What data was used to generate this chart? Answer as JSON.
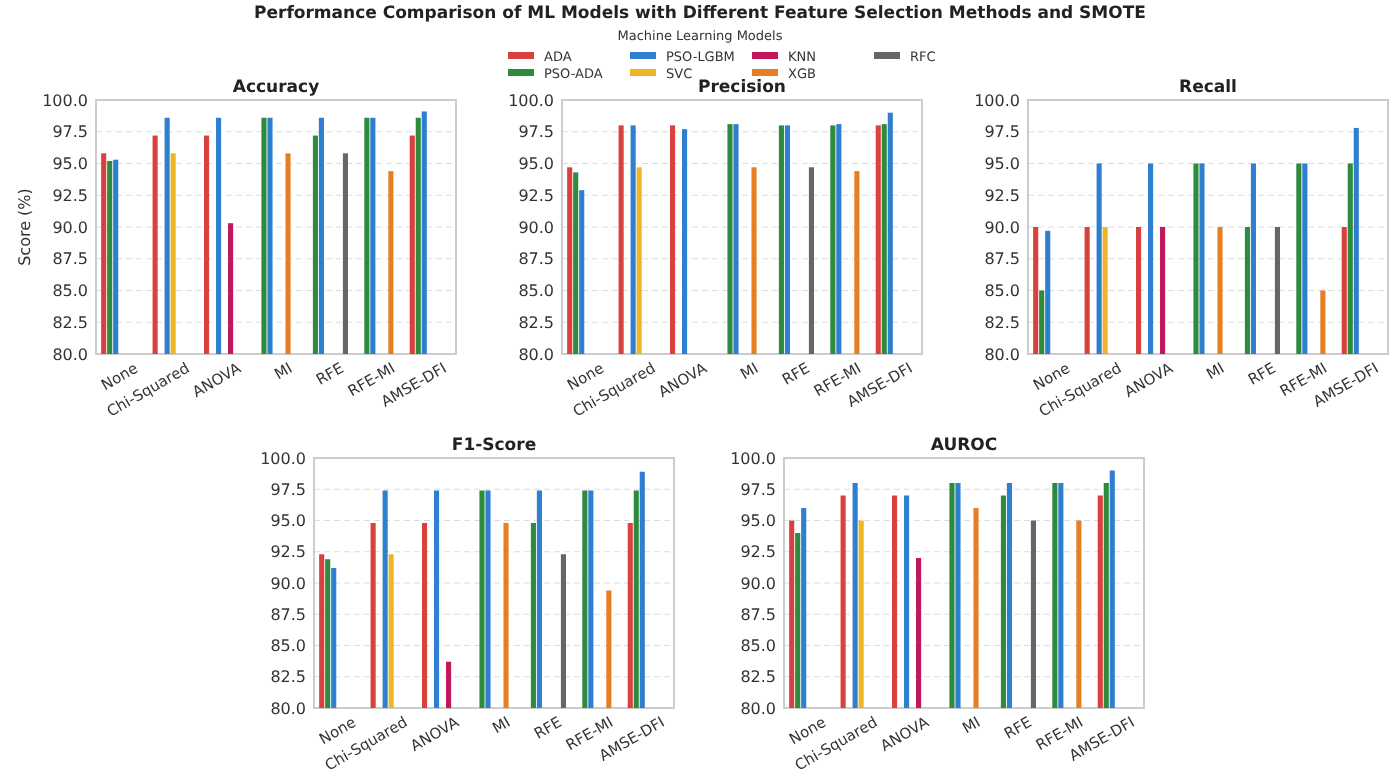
{
  "chart_data": [
    {
      "type": "bar",
      "title": "Accuracy",
      "ylabel": "Score (%)",
      "legend": "top",
      "legend_title": "Machine Learning Models",
      "annotations": [
        "Performance Comparison of ML Models with Different Feature Selection Methods and SMOTE"
      ],
      "grid": "y",
      "categories": [
        "None",
        "Chi-Squared",
        "ANOVA",
        "MI",
        "RFE",
        "RFE-MI",
        "AMSE-DFI"
      ],
      "ylim": [
        80,
        100
      ],
      "yticks": [
        {
          "value": 80,
          "label": "80.0"
        },
        {
          "value": 82.5,
          "label": "82.5"
        },
        {
          "value": 85,
          "label": "85.0"
        },
        {
          "value": 87.5,
          "label": "87.5"
        },
        {
          "value": 90,
          "label": "90.0"
        },
        {
          "value": 92.5,
          "label": "92.5"
        },
        {
          "value": 95,
          "label": "95.0"
        },
        {
          "value": 97.5,
          "label": "97.5"
        },
        {
          "value": 100,
          "label": "100.0"
        }
      ],
      "series": [
        {
          "name": "ADA",
          "color": "#d9413f",
          "values": [
            95.8,
            97.2,
            97.2,
            null,
            null,
            null,
            97.2
          ]
        },
        {
          "name": "PSO-ADA",
          "color": "#2e8b3e",
          "values": [
            95.2,
            null,
            null,
            98.6,
            97.2,
            98.6,
            98.6
          ]
        },
        {
          "name": "PSO-LGBM",
          "color": "#2f7fd0",
          "values": [
            95.3,
            98.6,
            98.6,
            98.6,
            98.6,
            98.6,
            99.1
          ]
        },
        {
          "name": "SVC",
          "color": "#f0b429",
          "values": [
            null,
            95.8,
            null,
            null,
            null,
            null,
            null
          ]
        },
        {
          "name": "KNN",
          "color": "#c2185b",
          "values": [
            null,
            null,
            90.3,
            null,
            null,
            null,
            null
          ]
        },
        {
          "name": "XGB",
          "color": "#e67e22",
          "values": [
            null,
            null,
            null,
            95.8,
            null,
            94.4,
            null
          ]
        },
        {
          "name": "RFC",
          "color": "#666666",
          "values": [
            null,
            null,
            null,
            null,
            95.8,
            null,
            null
          ]
        }
      ]
    },
    {
      "type": "bar",
      "title": "Precision",
      "grid": "y",
      "categories": [
        "None",
        "Chi-Squared",
        "ANOVA",
        "MI",
        "RFE",
        "RFE-MI",
        "AMSE-DFI"
      ],
      "ylim": [
        80,
        100
      ],
      "yticks": [
        {
          "value": 80,
          "label": "80.0"
        },
        {
          "value": 82.5,
          "label": "82.5"
        },
        {
          "value": 85,
          "label": "85.0"
        },
        {
          "value": 87.5,
          "label": "87.5"
        },
        {
          "value": 90,
          "label": "90.0"
        },
        {
          "value": 92.5,
          "label": "92.5"
        },
        {
          "value": 95,
          "label": "95.0"
        },
        {
          "value": 97.5,
          "label": "97.5"
        },
        {
          "value": 100,
          "label": "100.0"
        }
      ],
      "series": [
        {
          "color": "#d9413f",
          "values": [
            94.7,
            98.0,
            98.0,
            null,
            null,
            null,
            98.0
          ]
        },
        {
          "color": "#2e8b3e",
          "values": [
            94.3,
            null,
            null,
            98.1,
            98.0,
            98.0,
            98.1
          ]
        },
        {
          "color": "#2f7fd0",
          "values": [
            92.9,
            98.0,
            97.7,
            98.1,
            98.0,
            98.1,
            99.0
          ]
        },
        {
          "color": "#f0b429",
          "values": [
            null,
            94.7,
            null,
            null,
            null,
            null,
            null
          ]
        },
        {
          "values": [
            null,
            null,
            null,
            null,
            null,
            null,
            null
          ]
        },
        {
          "color": "#e67e22",
          "values": [
            null,
            null,
            null,
            94.7,
            null,
            94.4,
            null
          ]
        },
        {
          "color": "#666666",
          "values": [
            null,
            null,
            null,
            null,
            94.7,
            null,
            null
          ]
        }
      ]
    },
    {
      "type": "bar",
      "title": "Recall",
      "grid": "y",
      "categories": [
        "None",
        "Chi-Squared",
        "ANOVA",
        "MI",
        "RFE",
        "RFE-MI",
        "AMSE-DFI"
      ],
      "ylim": [
        80,
        100
      ],
      "yticks": [
        {
          "value": 80,
          "label": "80.0"
        },
        {
          "value": 82.5,
          "label": "82.5"
        },
        {
          "value": 85,
          "label": "85.0"
        },
        {
          "value": 87.5,
          "label": "87.5"
        },
        {
          "value": 90,
          "label": "90.0"
        },
        {
          "value": 92.5,
          "label": "92.5"
        },
        {
          "value": 95,
          "label": "95.0"
        },
        {
          "value": 97.5,
          "label": "97.5"
        },
        {
          "value": 100,
          "label": "100.0"
        }
      ],
      "series": [
        {
          "color": "#d9413f",
          "values": [
            90,
            90,
            90,
            null,
            null,
            null,
            90
          ]
        },
        {
          "color": "#2e8b3e",
          "values": [
            85,
            null,
            null,
            95,
            90,
            95,
            95
          ]
        },
        {
          "color": "#2f7fd0",
          "values": [
            89.7,
            95,
            95,
            95,
            95,
            95,
            97.8
          ]
        },
        {
          "color": "#f0b429",
          "values": [
            null,
            90,
            null,
            null,
            null,
            null,
            null
          ]
        },
        {
          "color": "#c2185b",
          "values": [
            null,
            null,
            90,
            null,
            null,
            null,
            null
          ]
        },
        {
          "color": "#e67e22",
          "values": [
            null,
            null,
            null,
            90,
            null,
            85,
            null
          ]
        },
        {
          "color": "#666666",
          "values": [
            null,
            null,
            null,
            null,
            90,
            null,
            null
          ]
        }
      ]
    },
    {
      "type": "bar",
      "title": "F1-Score",
      "grid": "y",
      "categories": [
        "None",
        "Chi-Squared",
        "ANOVA",
        "MI",
        "RFE",
        "RFE-MI",
        "AMSE-DFI"
      ],
      "ylim": [
        80,
        100
      ],
      "yticks": [
        {
          "value": 80,
          "label": "80.0"
        },
        {
          "value": 82.5,
          "label": "82.5"
        },
        {
          "value": 85,
          "label": "85.0"
        },
        {
          "value": 87.5,
          "label": "87.5"
        },
        {
          "value": 90,
          "label": "90.0"
        },
        {
          "value": 92.5,
          "label": "92.5"
        },
        {
          "value": 95,
          "label": "95.0"
        },
        {
          "value": 97.5,
          "label": "97.5"
        },
        {
          "value": 100,
          "label": "100.0"
        }
      ],
      "series": [
        {
          "color": "#d9413f",
          "values": [
            92.3,
            94.8,
            94.8,
            null,
            null,
            null,
            94.8
          ]
        },
        {
          "color": "#2e8b3e",
          "values": [
            91.9,
            null,
            null,
            97.4,
            94.8,
            97.4,
            97.4
          ]
        },
        {
          "color": "#2f7fd0",
          "values": [
            91.2,
            97.4,
            97.4,
            97.4,
            97.4,
            97.4,
            98.9
          ]
        },
        {
          "color": "#f0b429",
          "values": [
            null,
            92.3,
            null,
            null,
            null,
            null,
            null
          ]
        },
        {
          "color": "#c2185b",
          "values": [
            null,
            null,
            83.7,
            null,
            null,
            null,
            null
          ]
        },
        {
          "color": "#e67e22",
          "values": [
            null,
            null,
            null,
            94.8,
            null,
            89.4,
            null
          ]
        },
        {
          "color": "#666666",
          "values": [
            null,
            null,
            null,
            null,
            92.3,
            null,
            null
          ]
        }
      ]
    },
    {
      "type": "bar",
      "title": "AUROC",
      "grid": "y",
      "categories": [
        "None",
        "Chi-Squared",
        "ANOVA",
        "MI",
        "RFE",
        "RFE-MI",
        "AMSE-DFI"
      ],
      "ylim": [
        80,
        100
      ],
      "yticks": [
        {
          "value": 80,
          "label": "80.0"
        },
        {
          "value": 82.5,
          "label": "82.5"
        },
        {
          "value": 85,
          "label": "85.0"
        },
        {
          "value": 87.5,
          "label": "87.5"
        },
        {
          "value": 90,
          "label": "90.0"
        },
        {
          "value": 92.5,
          "label": "92.5"
        },
        {
          "value": 95,
          "label": "95.0"
        },
        {
          "value": 97.5,
          "label": "97.5"
        },
        {
          "value": 100,
          "label": "100.0"
        }
      ],
      "series": [
        {
          "color": "#d9413f",
          "values": [
            95,
            97,
            97,
            null,
            null,
            null,
            97
          ]
        },
        {
          "color": "#2e8b3e",
          "values": [
            94,
            null,
            null,
            98,
            97,
            98,
            98
          ]
        },
        {
          "color": "#2f7fd0",
          "values": [
            96,
            98,
            97,
            98,
            98,
            98,
            99
          ]
        },
        {
          "color": "#f0b429",
          "values": [
            null,
            95,
            null,
            null,
            null,
            null,
            null
          ]
        },
        {
          "color": "#c2185b",
          "values": [
            null,
            null,
            92,
            null,
            null,
            null,
            null
          ]
        },
        {
          "color": "#e67e22",
          "values": [
            null,
            null,
            null,
            96,
            null,
            95,
            null
          ]
        },
        {
          "color": "#666666",
          "values": [
            null,
            null,
            null,
            null,
            95,
            null,
            null
          ]
        }
      ]
    }
  ]
}
